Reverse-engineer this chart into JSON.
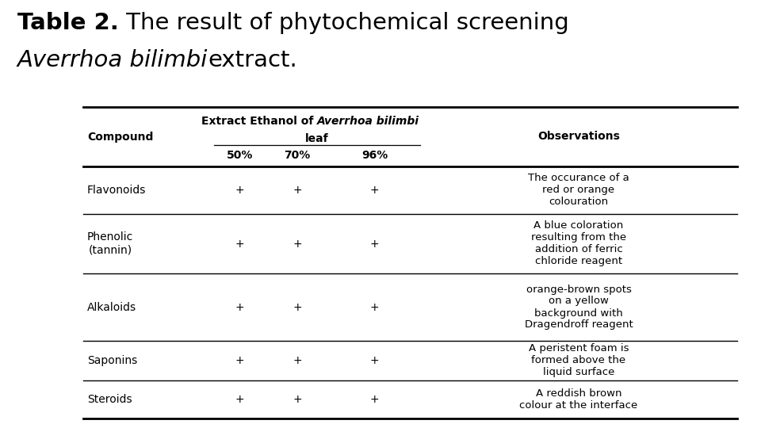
{
  "title_bold": "Table 2.",
  "title_normal": " The result of phytochemical screening",
  "title_italic_line2": "Averrhoa bilimbi",
  "title_normal_line2": "extract.",
  "bg_color": "#ffffff",
  "header_col1": "Compound",
  "header_col2_plain": "Extract Ethanol of ",
  "header_col2_italic": "Averrhoa bilimbi",
  "header_col2_end": " leaf",
  "header_sub": [
    "50%",
    "70%",
    "96%"
  ],
  "header_col3": "Observations",
  "rows": [
    {
      "compound": "Flavonoids",
      "v50": "+",
      "v70": "+",
      "v96": "+",
      "obs": "The occurance of a\nred or orange\ncolouration"
    },
    {
      "compound": "Phenolic\n(tannin)",
      "v50": "+",
      "v70": "+",
      "v96": "+",
      "obs": "A blue coloration\nresulting from the\naddition of ferric\nchloride reagent"
    },
    {
      "compound": "Alkaloids",
      "v50": "+",
      "v70": "+",
      "v96": "+",
      "obs": "orange-brown spots\non a yellow\nbackground with\nDragendroff reagent"
    },
    {
      "compound": "Saponins",
      "v50": "+",
      "v70": "+",
      "v96": "+",
      "obs": "A peristent foam is\nformed above the\nliquid surface"
    },
    {
      "compound": "Steroids",
      "v50": "+",
      "v70": "+",
      "v96": "+",
      "obs": "A reddish brown\ncolour at the interface"
    }
  ],
  "title_fontsize": 21,
  "table_fontsize": 10,
  "header_fontsize": 10
}
